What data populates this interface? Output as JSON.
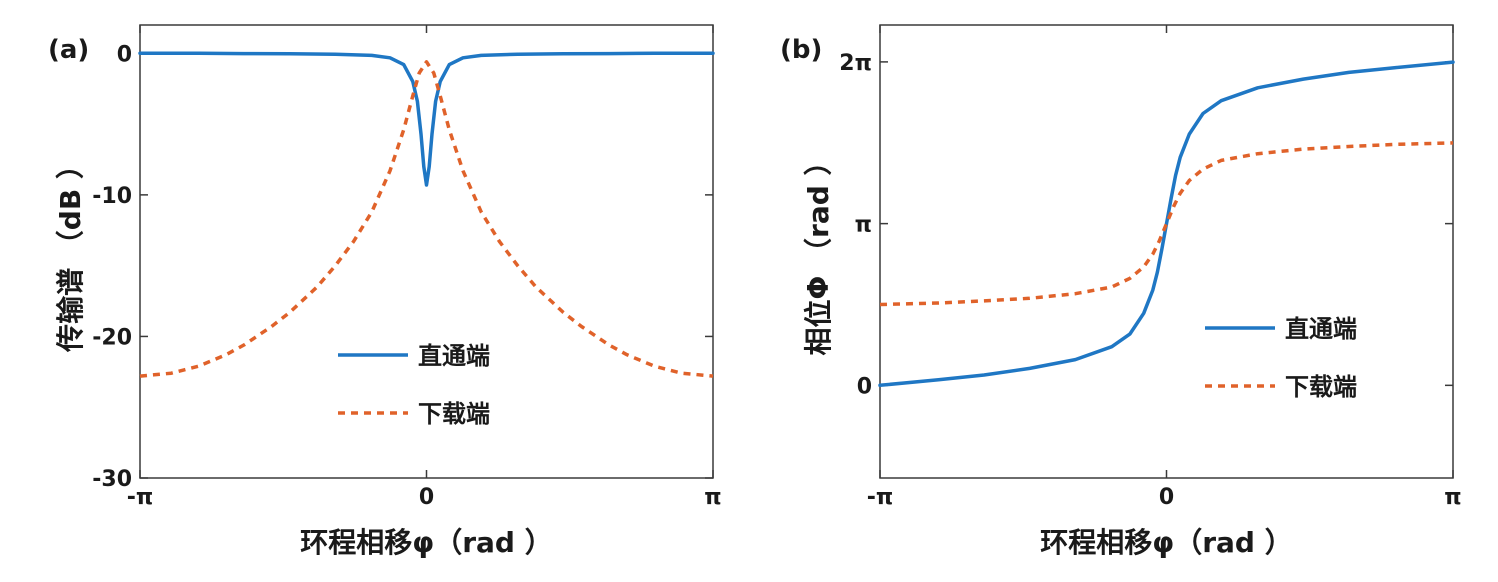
{
  "colors": {
    "through": "#1f77c4",
    "drop": "#e0622a",
    "axis": "#3a3a3a"
  },
  "chart_data": [
    {
      "type": "line",
      "panel_label": "(a)",
      "xlabel": "环程相移φ（rad ）",
      "ylabel": "传输谱 （dB ）",
      "xlim": [
        -3.1416,
        3.1416
      ],
      "ylim": [
        -30,
        2
      ],
      "xticks": [
        {
          "value": -3.1416,
          "label": "-π"
        },
        {
          "value": 0,
          "label": "0"
        },
        {
          "value": 3.1416,
          "label": "π"
        }
      ],
      "yticks": [
        {
          "value": 0,
          "label": "0"
        },
        {
          "value": -10,
          "label": "-10"
        },
        {
          "value": -20,
          "label": "-20"
        },
        {
          "value": -30,
          "label": "-30"
        }
      ],
      "legend_position": "center-right",
      "grid": false,
      "series": [
        {
          "name": "直通端",
          "style": "solid",
          "color": "#1f77c4",
          "x": [
            -3.1416,
            -2.5,
            -2.0,
            -1.5,
            -1.0,
            -0.6,
            -0.4,
            -0.25,
            -0.15,
            -0.1,
            -0.06,
            -0.03,
            0,
            0.03,
            0.06,
            0.1,
            0.15,
            0.25,
            0.4,
            0.6,
            1.0,
            1.5,
            2.0,
            2.5,
            3.1416
          ],
          "y": [
            0,
            0,
            -0.02,
            -0.03,
            -0.06,
            -0.15,
            -0.32,
            -0.8,
            -2.0,
            -3.4,
            -5.7,
            -8.0,
            -9.3,
            -8.0,
            -5.7,
            -3.4,
            -2.0,
            -0.8,
            -0.32,
            -0.15,
            -0.06,
            -0.03,
            -0.02,
            0,
            0
          ]
        },
        {
          "name": "下载端",
          "style": "dashed",
          "color": "#e0622a",
          "x": [
            -3.1416,
            -2.8,
            -2.5,
            -2.2,
            -2.0,
            -1.7,
            -1.5,
            -1.2,
            -1.0,
            -0.8,
            -0.6,
            -0.4,
            -0.25,
            -0.15,
            -0.08,
            0,
            0.08,
            0.15,
            0.25,
            0.4,
            0.6,
            0.8,
            1.0,
            1.2,
            1.5,
            1.7,
            2.0,
            2.2,
            2.5,
            2.8,
            3.1416
          ],
          "y": [
            -22.8,
            -22.6,
            -22.1,
            -21.3,
            -20.6,
            -19.3,
            -18.3,
            -16.5,
            -15.0,
            -13.3,
            -11.2,
            -8.3,
            -5.4,
            -3.0,
            -1.4,
            -0.6,
            -1.4,
            -3.0,
            -5.4,
            -8.3,
            -11.2,
            -13.3,
            -15.0,
            -16.5,
            -18.3,
            -19.3,
            -20.6,
            -21.3,
            -22.1,
            -22.6,
            -22.8
          ]
        }
      ]
    },
    {
      "type": "line",
      "panel_label": "(b)",
      "xlabel": "环程相移φ（rad ）",
      "ylabel": "相位Φ （rad ）",
      "xlim": [
        -3.1416,
        3.1416
      ],
      "ylim": [
        -1.8,
        7.0
      ],
      "xticks": [
        {
          "value": -3.1416,
          "label": "-π"
        },
        {
          "value": 0,
          "label": "0"
        },
        {
          "value": 3.1416,
          "label": "π"
        }
      ],
      "yticks": [
        {
          "value": 0,
          "label": "0"
        },
        {
          "value": 3.1416,
          "label": "π"
        },
        {
          "value": 6.2832,
          "label": "2π"
        }
      ],
      "legend_position": "center-right",
      "grid": false,
      "series": [
        {
          "name": "直通端",
          "style": "solid",
          "color": "#1f77c4",
          "x": [
            -3.1416,
            -2.5,
            -2.0,
            -1.5,
            -1.0,
            -0.6,
            -0.4,
            -0.25,
            -0.15,
            -0.1,
            -0.05,
            -0.02,
            0,
            0.02,
            0.05,
            0.1,
            0.15,
            0.25,
            0.4,
            0.6,
            1.0,
            1.5,
            2.0,
            2.5,
            3.1416
          ],
          "y": [
            0.0,
            0.11,
            0.2,
            0.33,
            0.5,
            0.75,
            1.0,
            1.4,
            1.85,
            2.2,
            2.65,
            2.95,
            3.14,
            3.33,
            3.63,
            4.08,
            4.43,
            4.88,
            5.28,
            5.53,
            5.78,
            5.95,
            6.08,
            6.17,
            6.28
          ]
        },
        {
          "name": "下载端",
          "style": "dashed",
          "color": "#e0622a",
          "x": [
            -3.1416,
            -2.5,
            -2.0,
            -1.5,
            -1.0,
            -0.6,
            -0.4,
            -0.25,
            -0.15,
            -0.08,
            0,
            0.08,
            0.15,
            0.25,
            0.4,
            0.6,
            1.0,
            1.5,
            2.0,
            2.5,
            3.1416
          ],
          "y": [
            1.57,
            1.6,
            1.64,
            1.69,
            1.78,
            1.91,
            2.08,
            2.3,
            2.55,
            2.8,
            3.14,
            3.48,
            3.73,
            3.98,
            4.2,
            4.37,
            4.5,
            4.59,
            4.64,
            4.68,
            4.71
          ]
        }
      ]
    }
  ]
}
